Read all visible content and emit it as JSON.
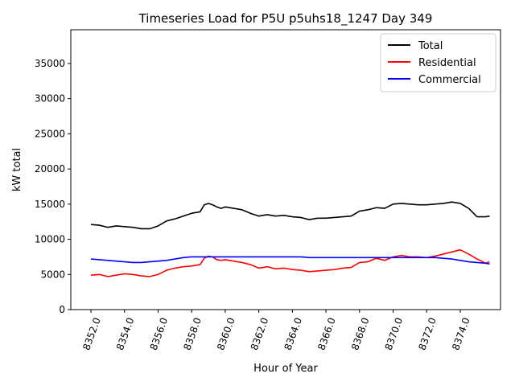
{
  "chart_data": {
    "type": "line",
    "title": "Timeseries Load for P5U p5uhs18_1247  Day 349",
    "xlabel": "Hour of Year",
    "ylabel": "kW total",
    "xlim": [
      8350.8,
      8376.4
    ],
    "ylim": [
      0,
      39800
    ],
    "xticks": [
      8352,
      8354,
      8356,
      8358,
      8360,
      8362,
      8364,
      8366,
      8368,
      8370,
      8372,
      8374
    ],
    "xtick_labels": [
      "8352.0",
      "8354.0",
      "8356.0",
      "8358.0",
      "8360.0",
      "8362.0",
      "8364.0",
      "8366.0",
      "8368.0",
      "8370.0",
      "8372.0",
      "8374.0"
    ],
    "yticks": [
      0,
      5000,
      10000,
      15000,
      20000,
      25000,
      30000,
      35000
    ],
    "ytick_labels": [
      "0",
      "5000",
      "10000",
      "15000",
      "20000",
      "25000",
      "30000",
      "35000"
    ],
    "legend_position": "upper right",
    "grid": false,
    "series": [
      {
        "name": "Total",
        "color": "#000000",
        "x": [
          8352.0,
          8352.5,
          8353.0,
          8353.5,
          8354.0,
          8354.5,
          8355.0,
          8355.5,
          8356.0,
          8356.5,
          8357.0,
          8357.5,
          8358.0,
          8358.5,
          8358.75,
          8359.0,
          8359.25,
          8359.5,
          8359.75,
          8360.0,
          8360.5,
          8361.0,
          8361.5,
          8362.0,
          8362.5,
          8363.0,
          8363.5,
          8364.0,
          8364.5,
          8365.0,
          8365.5,
          8366.0,
          8366.5,
          8367.0,
          8367.5,
          8368.0,
          8368.5,
          8369.0,
          8369.5,
          8370.0,
          8370.5,
          8371.0,
          8371.5,
          8372.0,
          8372.5,
          8373.0,
          8373.5,
          8374.0,
          8374.5,
          8375.0,
          8375.5,
          8375.75
        ],
        "values": [
          12100,
          12000,
          11700,
          11900,
          11800,
          11700,
          11500,
          11500,
          11900,
          12600,
          12900,
          13300,
          13700,
          13900,
          14900,
          15100,
          14900,
          14600,
          14400,
          14600,
          14400,
          14200,
          13700,
          13300,
          13500,
          13300,
          13400,
          13200,
          13100,
          12800,
          13000,
          13000,
          13100,
          13200,
          13300,
          14000,
          14200,
          14500,
          14400,
          15000,
          15100,
          15000,
          14900,
          14900,
          15000,
          15100,
          15300,
          15100,
          14400,
          13200,
          13200,
          13300
        ]
      },
      {
        "name": "Residential",
        "color": "#ff0000",
        "x": [
          8352.0,
          8352.5,
          8353.0,
          8353.5,
          8354.0,
          8354.5,
          8355.0,
          8355.5,
          8356.0,
          8356.5,
          8357.0,
          8357.5,
          8358.0,
          8358.5,
          8358.75,
          8359.0,
          8359.25,
          8359.5,
          8359.75,
          8360.0,
          8360.5,
          8361.0,
          8361.5,
          8362.0,
          8362.5,
          8363.0,
          8363.5,
          8364.0,
          8364.5,
          8365.0,
          8365.5,
          8366.0,
          8366.5,
          8367.0,
          8367.5,
          8368.0,
          8368.5,
          8369.0,
          8369.5,
          8370.0,
          8370.5,
          8371.0,
          8371.5,
          8372.0,
          8372.5,
          8373.0,
          8373.5,
          8374.0,
          8374.5,
          8375.0,
          8375.5,
          8375.75
        ],
        "values": [
          4900,
          5000,
          4700,
          4900,
          5100,
          5000,
          4800,
          4700,
          5000,
          5600,
          5900,
          6100,
          6200,
          6400,
          7300,
          7600,
          7500,
          7100,
          7000,
          7100,
          6900,
          6700,
          6400,
          5900,
          6100,
          5800,
          5900,
          5700,
          5600,
          5400,
          5500,
          5600,
          5700,
          5900,
          6000,
          6700,
          6800,
          7300,
          7000,
          7500,
          7700,
          7500,
          7500,
          7400,
          7600,
          7900,
          8200,
          8500,
          7900,
          7200,
          6600,
          6800
        ]
      },
      {
        "name": "Commercial",
        "color": "#0000ff",
        "x": [
          8352.0,
          8352.5,
          8353.0,
          8353.5,
          8354.0,
          8354.5,
          8355.0,
          8355.5,
          8356.0,
          8356.5,
          8357.0,
          8357.5,
          8358.0,
          8358.5,
          8359.0,
          8359.5,
          8360.0,
          8360.5,
          8361.0,
          8361.5,
          8362.0,
          8362.5,
          8363.0,
          8363.5,
          8364.0,
          8364.5,
          8365.0,
          8365.5,
          8366.0,
          8366.5,
          8367.0,
          8367.5,
          8368.0,
          8368.5,
          8369.0,
          8369.5,
          8370.0,
          8370.5,
          8371.0,
          8371.5,
          8372.0,
          8372.5,
          8373.0,
          8373.5,
          8374.0,
          8374.5,
          8375.0,
          8375.5,
          8375.75
        ],
        "values": [
          7200,
          7100,
          7000,
          6900,
          6800,
          6700,
          6700,
          6800,
          6900,
          7000,
          7200,
          7400,
          7500,
          7500,
          7500,
          7500,
          7500,
          7500,
          7500,
          7500,
          7500,
          7500,
          7500,
          7500,
          7500,
          7500,
          7400,
          7400,
          7400,
          7400,
          7400,
          7400,
          7400,
          7400,
          7400,
          7400,
          7400,
          7400,
          7400,
          7400,
          7400,
          7400,
          7300,
          7200,
          7000,
          6800,
          6700,
          6600,
          6500
        ]
      }
    ]
  }
}
